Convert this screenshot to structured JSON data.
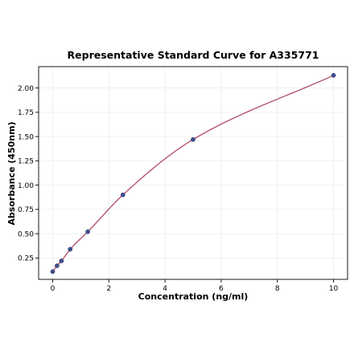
{
  "chart_data": {
    "type": "scatter",
    "title": "Representative Standard Curve for A335771",
    "xlabel": "Concentration (ng/ml)",
    "ylabel": "Absorbance (450nm)",
    "xlim": [
      -0.5,
      10.5
    ],
    "ylim": [
      0.03,
      2.22
    ],
    "xticks": [
      0,
      2,
      4,
      6,
      8,
      10
    ],
    "xtick_labels": [
      "0",
      "2",
      "4",
      "6",
      "8",
      "10"
    ],
    "yticks": [
      0.25,
      0.5,
      0.75,
      1.0,
      1.25,
      1.5,
      1.75,
      2.0
    ],
    "ytick_labels": [
      "0.25",
      "0.50",
      "0.75",
      "1.00",
      "1.25",
      "1.50",
      "1.75",
      "2.00"
    ],
    "grid": true,
    "series": [
      {
        "type": "scatter",
        "x": [
          0,
          0.156,
          0.3125,
          0.625,
          1.25,
          2.5,
          5,
          10
        ],
        "y": [
          0.11,
          0.17,
          0.22,
          0.34,
          0.52,
          0.9,
          1.47,
          2.13
        ],
        "color": "#3b4f8c"
      },
      {
        "type": "line",
        "fit": "smooth curve through points",
        "x": [
          0,
          0.156,
          0.3125,
          0.625,
          1.25,
          2.5,
          5,
          10
        ],
        "y": [
          0.11,
          0.17,
          0.22,
          0.34,
          0.52,
          0.9,
          1.47,
          2.13
        ],
        "color": "#b5566e"
      }
    ]
  }
}
